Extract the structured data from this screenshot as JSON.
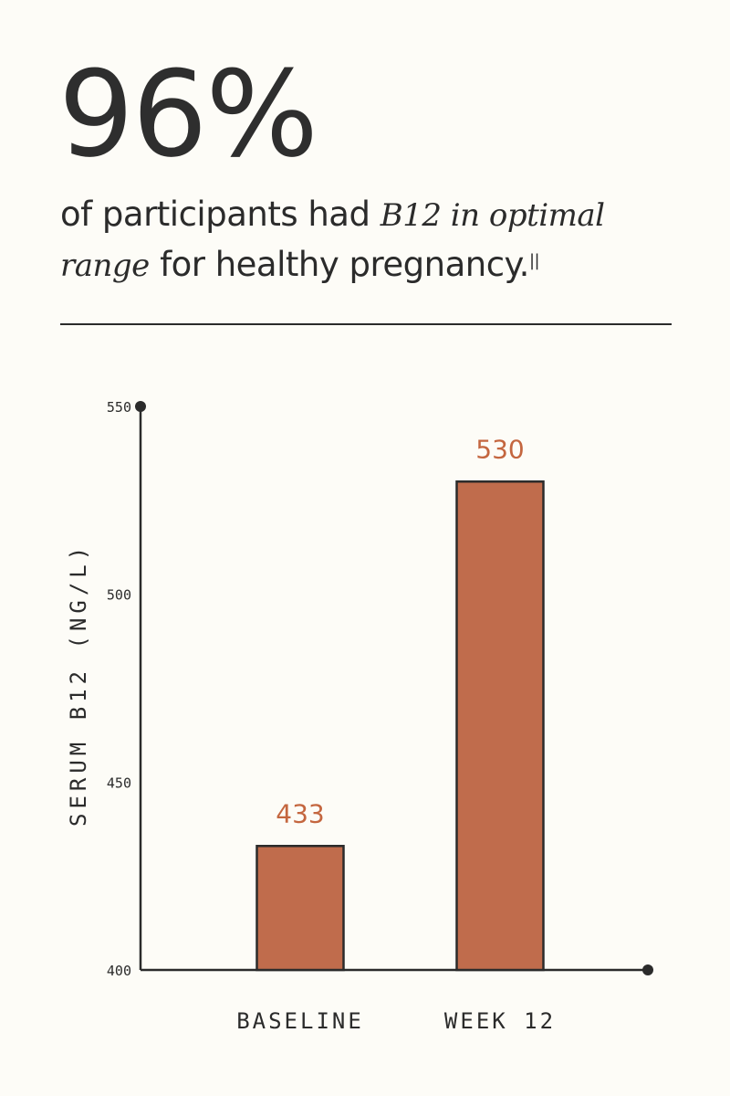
{
  "headline": {
    "stat": "96%",
    "text_before": "of participants had ",
    "emphasis": "B12 in optimal range",
    "text_after": " for healthy pregnancy.",
    "footnote_mark": "||"
  },
  "chart_data": {
    "type": "bar",
    "categories": [
      "BASELINE",
      "WEEK 12"
    ],
    "values": [
      433,
      530
    ],
    "value_labels": [
      "433",
      "530"
    ],
    "ylabel": "SERUM B12 (NG/L)",
    "xlabel": "",
    "ylim": [
      400,
      550
    ],
    "yticks": [
      400,
      450,
      500,
      550
    ],
    "ytick_labels": [
      "400",
      "450",
      "500",
      "550"
    ],
    "grid": false,
    "colors": {
      "bar": "#c06c4c",
      "value_label": "#c4663f",
      "axis": "#2b2b2b"
    }
  }
}
